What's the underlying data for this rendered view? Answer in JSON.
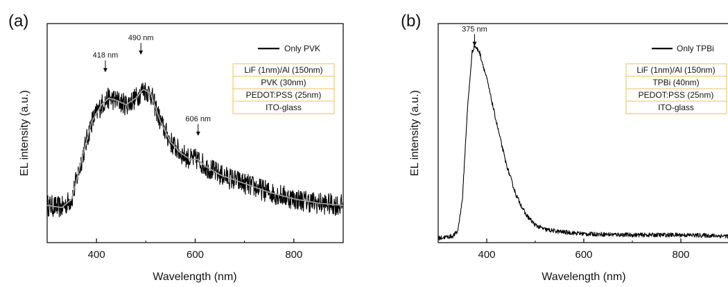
{
  "chart_data": [
    {
      "type": "line",
      "panel_label": "(a)",
      "xlabel": "Wavelength (nm)",
      "ylabel": "EL intensity (a.u.)",
      "xlim": [
        300,
        900
      ],
      "ylim": [
        0,
        1
      ],
      "x_ticks": [
        400,
        600,
        800
      ],
      "x_tick_labels": [
        "400",
        "600",
        "800"
      ],
      "grid": false,
      "legend_position": "top-right",
      "series": [
        {
          "name": "Only PVK",
          "color": "#000000",
          "noisy": true,
          "points": [
            [
              300,
              0.17
            ],
            [
              330,
              0.16
            ],
            [
              350,
              0.2
            ],
            [
              370,
              0.38
            ],
            [
              390,
              0.55
            ],
            [
              410,
              0.63
            ],
            [
              425,
              0.66
            ],
            [
              440,
              0.65
            ],
            [
              460,
              0.63
            ],
            [
              480,
              0.66
            ],
            [
              495,
              0.7
            ],
            [
              510,
              0.68
            ],
            [
              530,
              0.55
            ],
            [
              550,
              0.46
            ],
            [
              570,
              0.41
            ],
            [
              590,
              0.38
            ],
            [
              605,
              0.38
            ],
            [
              620,
              0.35
            ],
            [
              650,
              0.31
            ],
            [
              700,
              0.27
            ],
            [
              750,
              0.23
            ],
            [
              800,
              0.2
            ],
            [
              850,
              0.18
            ],
            [
              900,
              0.17
            ]
          ]
        },
        {
          "name": "",
          "color": "#a0a0a0",
          "noisy": false,
          "points": [
            [
              300,
              0.17
            ],
            [
              330,
              0.16
            ],
            [
              350,
              0.2
            ],
            [
              370,
              0.38
            ],
            [
              390,
              0.55
            ],
            [
              410,
              0.63
            ],
            [
              425,
              0.66
            ],
            [
              440,
              0.65
            ],
            [
              460,
              0.63
            ],
            [
              480,
              0.66
            ],
            [
              495,
              0.7
            ],
            [
              510,
              0.68
            ],
            [
              530,
              0.55
            ],
            [
              550,
              0.46
            ],
            [
              570,
              0.41
            ],
            [
              590,
              0.38
            ],
            [
              605,
              0.38
            ],
            [
              620,
              0.35
            ],
            [
              650,
              0.31
            ],
            [
              700,
              0.27
            ],
            [
              750,
              0.23
            ],
            [
              800,
              0.2
            ],
            [
              850,
              0.18
            ],
            [
              900,
              0.17
            ]
          ]
        }
      ],
      "annotations": [
        {
          "text": "418 nm",
          "x": 418,
          "y": 0.8
        },
        {
          "text": "490 nm",
          "x": 490,
          "y": 0.88
        },
        {
          "text": "606 nm",
          "x": 606,
          "y": 0.51
        }
      ],
      "device_stack": [
        "LiF (1nm)/Al (150nm)",
        "PVK (30nm)",
        "PEDOT:PSS (25nm)",
        "ITO-glass"
      ],
      "stack_border_color": "#e8c15a"
    },
    {
      "type": "line",
      "panel_label": "(b)",
      "xlabel": "Wavelength (nm)",
      "ylabel": "EL intensity (a.u.)",
      "xlim": [
        300,
        900
      ],
      "ylim": [
        0,
        1
      ],
      "x_ticks": [
        400,
        600,
        800
      ],
      "x_tick_labels": [
        "400",
        "600",
        "800"
      ],
      "grid": false,
      "legend_position": "top-right",
      "series": [
        {
          "name": "Only TPBi",
          "color": "#000000",
          "noisy": true,
          "points": [
            [
              300,
              0.02
            ],
            [
              330,
              0.03
            ],
            [
              340,
              0.05
            ],
            [
              350,
              0.2
            ],
            [
              360,
              0.6
            ],
            [
              370,
              0.87
            ],
            [
              375,
              0.9
            ],
            [
              385,
              0.87
            ],
            [
              400,
              0.75
            ],
            [
              420,
              0.55
            ],
            [
              440,
              0.36
            ],
            [
              460,
              0.22
            ],
            [
              480,
              0.13
            ],
            [
              500,
              0.08
            ],
            [
              520,
              0.06
            ],
            [
              550,
              0.05
            ],
            [
              600,
              0.04
            ],
            [
              700,
              0.035
            ],
            [
              800,
              0.035
            ],
            [
              900,
              0.03
            ]
          ]
        }
      ],
      "annotations": [
        {
          "text": "375 nm",
          "x": 375,
          "y": 0.92
        }
      ],
      "device_stack": [
        "LiF (1nm)/Al (150nm)",
        "TPBi (40nm)",
        "PEDOT:PSS (25nm)",
        "ITO-glass"
      ],
      "stack_border_color": "#e8c15a"
    }
  ]
}
